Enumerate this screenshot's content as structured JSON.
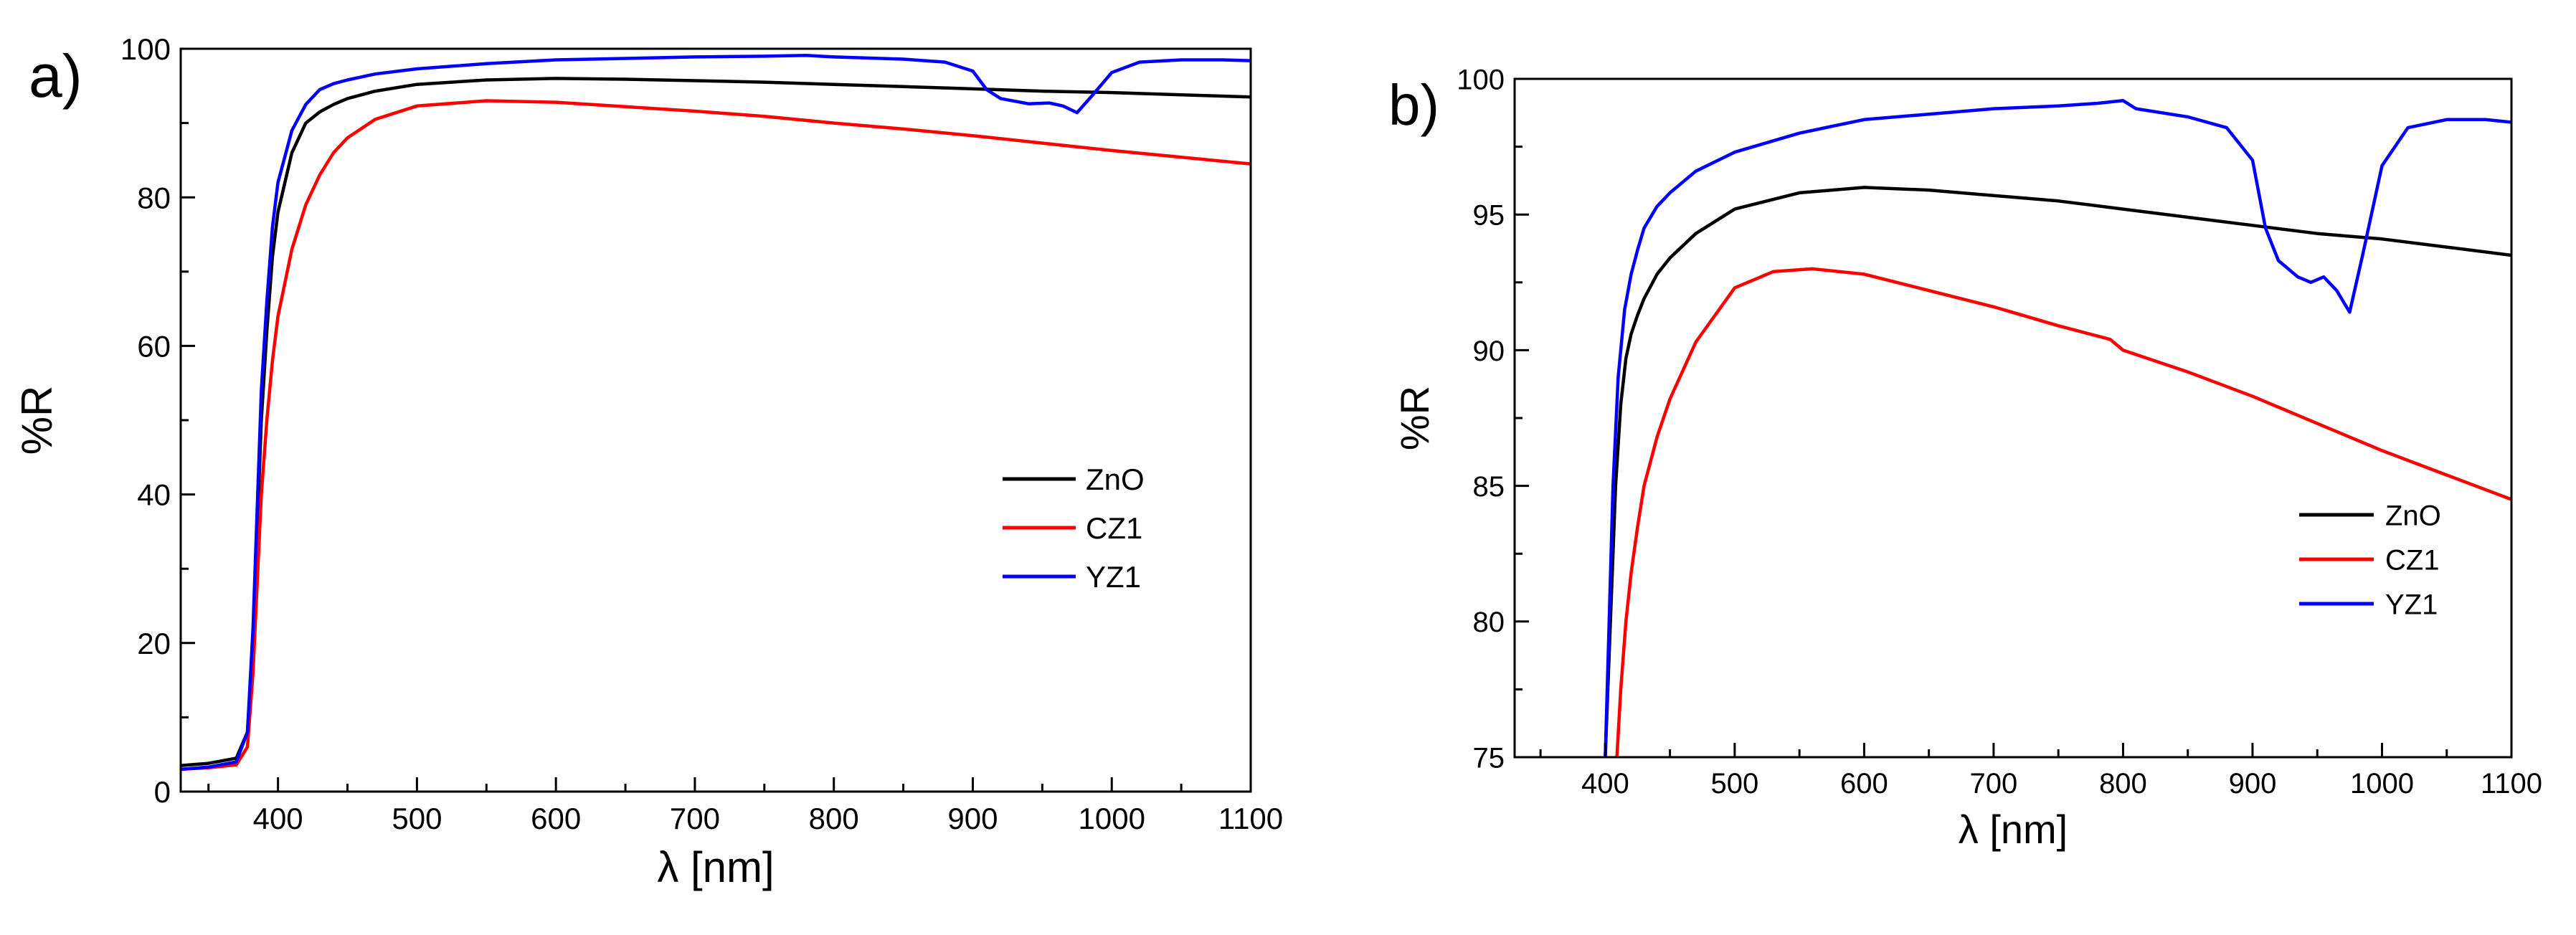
{
  "chart_data": [
    {
      "panel_label": "a)",
      "type": "line",
      "xlabel": "λ [nm]",
      "ylabel": "%R",
      "xlim": [
        330,
        1100
      ],
      "ylim": [
        0,
        100
      ],
      "xticks": [
        400,
        500,
        600,
        700,
        800,
        900,
        1000,
        1100
      ],
      "yticks": [
        0,
        20,
        40,
        60,
        80,
        100
      ],
      "legend_position": "right-middle",
      "series": [
        {
          "name": "ZnO",
          "color": "#000000",
          "x": [
            330,
            350,
            370,
            378,
            382,
            385,
            388,
            392,
            396,
            400,
            410,
            420,
            430,
            440,
            450,
            470,
            500,
            550,
            600,
            650,
            700,
            750,
            800,
            850,
            900,
            950,
            1000,
            1050,
            1100
          ],
          "y": [
            3.5,
            3.8,
            4.5,
            8,
            20,
            35,
            50,
            62,
            72,
            78,
            86,
            90,
            91.5,
            92.5,
            93.3,
            94.3,
            95.2,
            95.8,
            96,
            95.9,
            95.7,
            95.5,
            95.2,
            94.9,
            94.6,
            94.3,
            94.1,
            93.8,
            93.5
          ]
        },
        {
          "name": "CZ1",
          "color": "#ff0000",
          "x": [
            330,
            350,
            370,
            378,
            382,
            385,
            388,
            392,
            396,
            400,
            410,
            420,
            430,
            440,
            450,
            470,
            500,
            550,
            600,
            650,
            700,
            750,
            800,
            850,
            900,
            950,
            1000,
            1050,
            1100
          ],
          "y": [
            3,
            3.2,
            3.6,
            6,
            16,
            28,
            40,
            50,
            58,
            64,
            73,
            79,
            83,
            86,
            88,
            90.5,
            92.3,
            93,
            92.8,
            92.2,
            91.6,
            90.9,
            90,
            89.2,
            88.3,
            87.3,
            86.3,
            85.4,
            84.5
          ]
        },
        {
          "name": "YZ1",
          "color": "#0000ff",
          "x": [
            330,
            350,
            370,
            378,
            382,
            385,
            388,
            392,
            396,
            400,
            410,
            420,
            430,
            440,
            450,
            470,
            500,
            550,
            600,
            650,
            700,
            750,
            780,
            800,
            850,
            880,
            900,
            910,
            920,
            940,
            955,
            965,
            975,
            985,
            1000,
            1020,
            1050,
            1080,
            1100
          ],
          "y": [
            3,
            3.3,
            4,
            8,
            22,
            38,
            54,
            66,
            76,
            82,
            89,
            92.5,
            94.5,
            95.3,
            95.8,
            96.6,
            97.3,
            98,
            98.5,
            98.7,
            98.9,
            99,
            99.1,
            98.9,
            98.6,
            98.2,
            97,
            94.5,
            93.3,
            92.6,
            92.7,
            92.3,
            91.4,
            93.5,
            96.8,
            98.2,
            98.5,
            98.5,
            98.4
          ]
        }
      ]
    },
    {
      "panel_label": "b)",
      "type": "line",
      "xlabel": "λ [nm]",
      "ylabel": "%R",
      "xlim": [
        330,
        1100
      ],
      "ylim": [
        75,
        100
      ],
      "xticks": [
        400,
        500,
        600,
        700,
        800,
        900,
        1000,
        1100
      ],
      "yticks": [
        75,
        80,
        85,
        90,
        95,
        100
      ],
      "legend_position": "right-middle",
      "series": [
        {
          "name": "ZnO",
          "color": "#000000",
          "x": [
            400,
            404,
            408,
            412,
            416,
            420,
            425,
            430,
            440,
            450,
            470,
            500,
            550,
            600,
            650,
            700,
            750,
            800,
            850,
            900,
            950,
            1000,
            1050,
            1100
          ],
          "y": [
            75,
            80,
            85,
            88,
            89.7,
            90.6,
            91.3,
            91.9,
            92.8,
            93.4,
            94.3,
            95.2,
            95.8,
            96,
            95.9,
            95.7,
            95.5,
            95.2,
            94.9,
            94.6,
            94.3,
            94.1,
            93.8,
            93.5
          ]
        },
        {
          "name": "CZ1",
          "color": "#ff0000",
          "x": [
            409,
            412,
            416,
            420,
            425,
            430,
            440,
            450,
            470,
            500,
            530,
            560,
            600,
            650,
            700,
            750,
            790,
            800,
            850,
            900,
            950,
            1000,
            1050,
            1100
          ],
          "y": [
            75,
            77.5,
            80,
            81.8,
            83.5,
            85,
            86.8,
            88.2,
            90.3,
            92.3,
            92.9,
            93,
            92.8,
            92.2,
            91.6,
            90.9,
            90.4,
            90,
            89.2,
            88.3,
            87.3,
            86.3,
            85.4,
            84.5
          ]
        },
        {
          "name": "YZ1",
          "color": "#0000ff",
          "x": [
            400,
            403,
            406,
            410,
            415,
            420,
            425,
            430,
            440,
            450,
            470,
            500,
            550,
            600,
            650,
            700,
            750,
            780,
            800,
            810,
            850,
            880,
            900,
            910,
            920,
            935,
            945,
            955,
            965,
            975,
            985,
            1000,
            1020,
            1050,
            1080,
            1100
          ],
          "y": [
            75,
            80,
            85,
            89,
            91.5,
            92.8,
            93.7,
            94.5,
            95.3,
            95.8,
            96.6,
            97.3,
            98,
            98.5,
            98.7,
            98.9,
            99,
            99.1,
            99.2,
            98.9,
            98.6,
            98.2,
            97,
            94.5,
            93.3,
            92.7,
            92.5,
            92.7,
            92.2,
            91.4,
            93.5,
            96.8,
            98.2,
            98.5,
            98.5,
            98.4
          ]
        }
      ]
    }
  ]
}
